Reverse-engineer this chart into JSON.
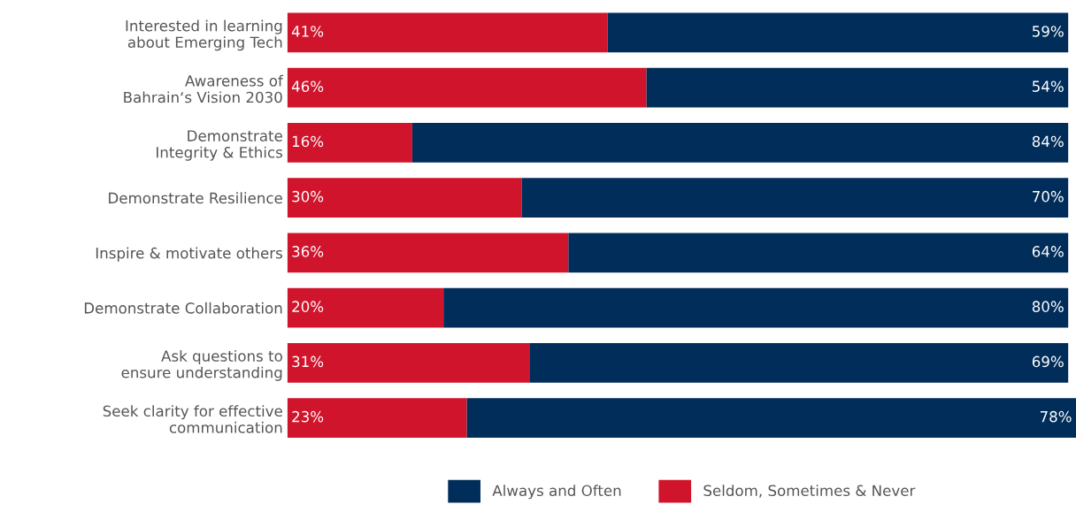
{
  "chart_data": {
    "type": "bar",
    "orientation": "horizontal",
    "stacked": true,
    "legend": "bottom",
    "grid": false,
    "tick_labels": "y",
    "categories": [
      "Interested in learning\nabout Emerging Tech",
      "Awareness of\nBahrain‘s Vision 2030",
      "Demonstrate\nIntegrity & Ethics",
      "Demonstrate Resilience",
      "Inspire & motivate others",
      "Demonstrate Collaboration",
      "Ask questions to\nensure understanding",
      "Seek clarity for effective\ncommunication"
    ],
    "series": [
      {
        "name": "Seldom, Sometimes & Never",
        "color": "#d0142c",
        "values": [
          41,
          46,
          16,
          30,
          36,
          20,
          31,
          23
        ],
        "value_labels": [
          "41%",
          "46%",
          "16%",
          "30%",
          "36%",
          "20%",
          "31%",
          "23%"
        ]
      },
      {
        "name": "Always and Often",
        "color": "#012d5a",
        "values": [
          59,
          54,
          84,
          70,
          64,
          80,
          69,
          78
        ],
        "value_labels": [
          "59%",
          "54%",
          "84%",
          "70%",
          "64%",
          "80%",
          "69%",
          "78%"
        ]
      }
    ]
  }
}
